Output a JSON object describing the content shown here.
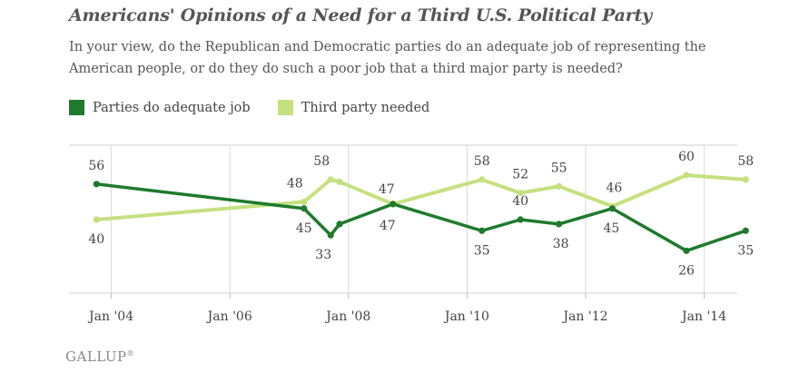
{
  "chart_data": {
    "type": "line",
    "title": "Americans' Opinions of a Need for a Third U.S. Political Party",
    "subtitle": "In your view, do the Republican and Democratic parties do an adequate job of representing the American people, or do they do such a poor job that a third major party is needed?",
    "x_tick_labels": [
      "Jan '04",
      "Jan '06",
      "Jan '08",
      "Jan '10",
      "Jan '12",
      "Jan '14"
    ],
    "ylim": [
      20,
      70
    ],
    "grid": "vertical",
    "legend_position": "top-left",
    "series": [
      {
        "name": "Parties do adequate job",
        "color": "#1f7a2c",
        "label_position": "above-first-then-below",
        "points": [
          {
            "x": 2003.8,
            "y": 56,
            "label": "56"
          },
          {
            "x": 2007.3,
            "y": 45,
            "label": "45"
          },
          {
            "x": 2007.75,
            "y": 33,
            "label": "33"
          },
          {
            "x": 2007.9,
            "y": 38,
            "label": ""
          },
          {
            "x": 2008.8,
            "y": 47,
            "label": "47"
          },
          {
            "x": 2010.3,
            "y": 35,
            "label": "35"
          },
          {
            "x": 2010.95,
            "y": 40,
            "label": "40"
          },
          {
            "x": 2011.6,
            "y": 38,
            "label": "38"
          },
          {
            "x": 2012.5,
            "y": 45,
            "label": "45"
          },
          {
            "x": 2013.75,
            "y": 26,
            "label": "26"
          },
          {
            "x": 2014.75,
            "y": 35,
            "label": "35"
          }
        ]
      },
      {
        "name": "Third party needed",
        "color": "#c5e17f",
        "points": [
          {
            "x": 2003.8,
            "y": 40,
            "label": "40"
          },
          {
            "x": 2007.3,
            "y": 48,
            "label": "48"
          },
          {
            "x": 2007.75,
            "y": 58,
            "label": "58"
          },
          {
            "x": 2007.9,
            "y": 57,
            "label": ""
          },
          {
            "x": 2008.8,
            "y": 47,
            "label": "47"
          },
          {
            "x": 2010.3,
            "y": 58,
            "label": "58"
          },
          {
            "x": 2010.95,
            "y": 52,
            "label": "52"
          },
          {
            "x": 2011.6,
            "y": 55,
            "label": "55"
          },
          {
            "x": 2012.5,
            "y": 46,
            "label": "46"
          },
          {
            "x": 2013.75,
            "y": 60,
            "label": "60"
          },
          {
            "x": 2014.75,
            "y": 58,
            "label": "58"
          }
        ]
      }
    ]
  },
  "footer": {
    "brand": "GALLUP",
    "trademark": "®"
  }
}
